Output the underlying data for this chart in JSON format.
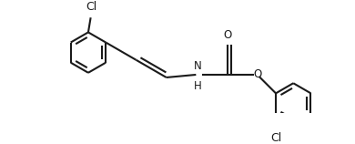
{
  "bg_color": "#ffffff",
  "line_color": "#1a1a1a",
  "line_width": 1.5,
  "font_size": 8.5,
  "figsize": [
    3.9,
    1.58
  ],
  "dpi": 100,
  "xlim": [
    0.0,
    7.8
  ],
  "ylim": [
    -1.6,
    1.6
  ]
}
